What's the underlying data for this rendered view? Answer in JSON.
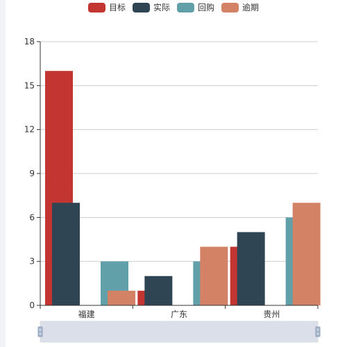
{
  "chart_data": {
    "type": "bar",
    "categories": [
      "福建",
      "广东",
      "贵州"
    ],
    "series": [
      {
        "name": "目标",
        "color": "#c23531",
        "values": [
          16,
          1,
          4
        ]
      },
      {
        "name": "实际",
        "color": "#2f4554",
        "values": [
          7,
          2,
          5
        ]
      },
      {
        "name": "回购",
        "color": "#61a0a8",
        "values": [
          3,
          3,
          6
        ]
      },
      {
        "name": "逾期",
        "color": "#d48265",
        "values": [
          1,
          4,
          7
        ]
      }
    ],
    "ylim": [
      0,
      18
    ],
    "yticks": [
      0,
      3,
      6,
      9,
      12,
      15,
      18
    ],
    "xlabel": "",
    "ylabel": "",
    "grid": "horizontal",
    "legend_position": "top-center",
    "data_zoom": {
      "start": 0,
      "end": 1,
      "visible": true
    }
  }
}
